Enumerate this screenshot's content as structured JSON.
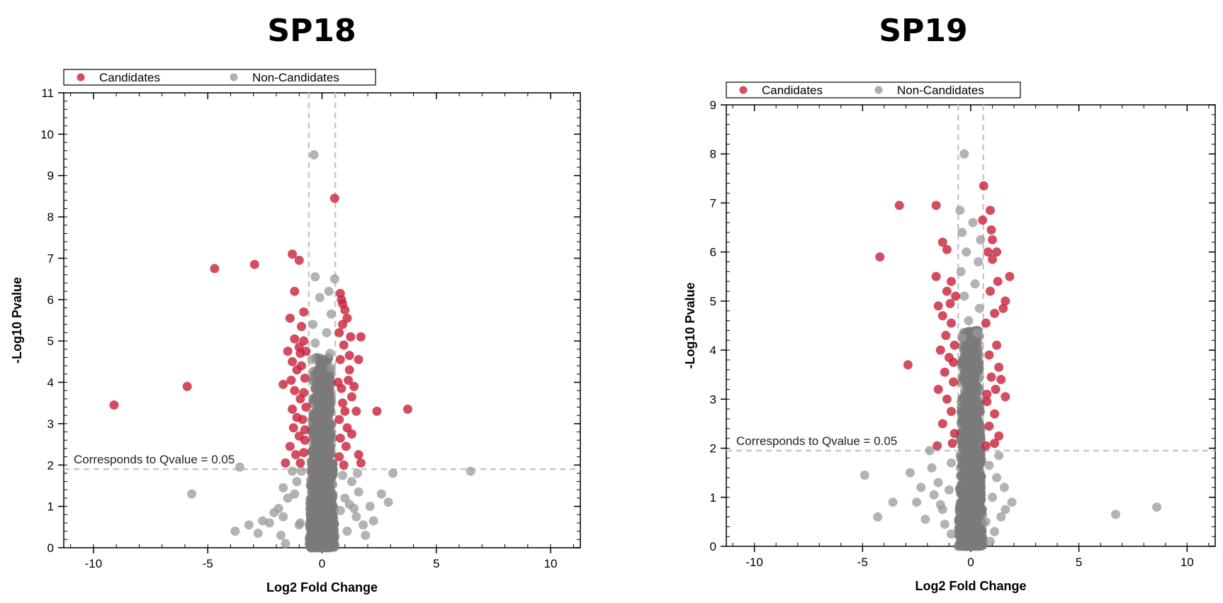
{
  "colors": {
    "candidate": "#c8203a",
    "non_candidate": "#9a9a9a",
    "dense_non_candidate": "#7a7a7a",
    "threshold_line": "#c8c8c8",
    "axis": "#000000"
  },
  "chart_data": [
    {
      "type": "scatter",
      "title": "SP18",
      "xlabel": "Log2 Fold Change",
      "ylabel": "-Log10 Pvalue",
      "xlim": [
        -11.3,
        11.3
      ],
      "ylim": [
        0,
        11
      ],
      "xticks": [
        -10,
        -5,
        0,
        5,
        10
      ],
      "yticks": [
        0,
        1,
        2,
        3,
        4,
        5,
        6,
        7,
        8,
        9,
        10,
        11
      ],
      "grid": false,
      "legend": {
        "position": "top-left",
        "entries": [
          "Candidates",
          "Non-Candidates"
        ]
      },
      "threshold": {
        "y": 1.9,
        "x": [
          -0.58,
          0.58
        ],
        "label": "Corresponds to Qvalue = 0.05"
      },
      "series": [
        {
          "name": "Candidates",
          "points": [
            [
              0.55,
              8.45
            ],
            [
              -1.3,
              7.1
            ],
            [
              -1.0,
              6.95
            ],
            [
              -2.95,
              6.85
            ],
            [
              -4.7,
              6.75
            ],
            [
              -9.1,
              3.45
            ],
            [
              -5.9,
              3.9
            ],
            [
              2.4,
              3.3
            ],
            [
              3.75,
              3.35
            ],
            [
              1.5,
              3.3
            ],
            [
              1.7,
              2.05
            ],
            [
              1.6,
              2.25
            ],
            [
              -1.7,
              3.95
            ],
            [
              1.6,
              4.55
            ],
            [
              1.7,
              5.1
            ],
            [
              -1.5,
              4.75
            ],
            [
              1.2,
              4.65
            ],
            [
              -1.2,
              6.2
            ],
            [
              -0.8,
              5.7
            ],
            [
              0.9,
              5.9
            ],
            [
              1.0,
              5.75
            ],
            [
              0.8,
              6.15
            ],
            [
              -1.4,
              5.55
            ],
            [
              1.25,
              5.1
            ],
            [
              -0.9,
              5.35
            ],
            [
              -1.2,
              5.05
            ],
            [
              -1.0,
              4.85
            ],
            [
              -1.3,
              4.5
            ],
            [
              -1.1,
              4.3
            ],
            [
              -1.35,
              4.05
            ],
            [
              -1.2,
              3.8
            ],
            [
              -0.95,
              3.6
            ],
            [
              -1.3,
              3.35
            ],
            [
              -1.1,
              3.15
            ],
            [
              -1.25,
              2.9
            ],
            [
              -1.0,
              2.7
            ],
            [
              -1.4,
              2.45
            ],
            [
              -1.15,
              2.25
            ],
            [
              -0.95,
              2.05
            ],
            [
              -0.8,
              2.3
            ],
            [
              -0.75,
              2.6
            ],
            [
              -0.75,
              2.85
            ],
            [
              -0.85,
              3.1
            ],
            [
              -0.7,
              3.4
            ],
            [
              -0.8,
              3.75
            ],
            [
              -0.75,
              4.1
            ],
            [
              -0.9,
              4.4
            ],
            [
              -0.7,
              4.75
            ],
            [
              -0.8,
              5.0
            ],
            [
              0.9,
              5.4
            ],
            [
              1.1,
              5.55
            ],
            [
              0.75,
              5.2
            ],
            [
              1.2,
              4.3
            ],
            [
              0.95,
              4.9
            ],
            [
              0.8,
              4.55
            ],
            [
              1.15,
              4.05
            ],
            [
              0.85,
              3.85
            ],
            [
              1.3,
              3.65
            ],
            [
              0.9,
              3.5
            ],
            [
              1.0,
              3.3
            ],
            [
              0.75,
              3.1
            ],
            [
              1.1,
              2.9
            ],
            [
              0.8,
              2.65
            ],
            [
              1.05,
              2.45
            ],
            [
              0.75,
              2.2
            ],
            [
              0.95,
              2.0
            ],
            [
              1.3,
              2.75
            ],
            [
              0.7,
              4.0
            ],
            [
              1.4,
              3.9
            ],
            [
              0.85,
              6.0
            ],
            [
              -1.6,
              2.05
            ],
            [
              -0.95,
              4.7
            ]
          ]
        },
        {
          "name": "Non-Candidates",
          "points": [
            [
              -0.35,
              9.5
            ],
            [
              -0.3,
              6.55
            ],
            [
              0.55,
              6.5
            ],
            [
              0.3,
              6.2
            ],
            [
              -0.1,
              6.05
            ],
            [
              0.4,
              5.65
            ],
            [
              -0.4,
              5.4
            ],
            [
              0.2,
              5.2
            ],
            [
              -0.3,
              4.95
            ],
            [
              0.35,
              4.7
            ],
            [
              -0.45,
              4.55
            ],
            [
              0.4,
              4.35
            ],
            [
              6.5,
              1.85
            ],
            [
              3.1,
              1.8
            ],
            [
              2.9,
              1.1
            ],
            [
              2.6,
              1.3
            ],
            [
              -3.6,
              1.95
            ],
            [
              -5.7,
              1.3
            ],
            [
              -3.8,
              0.4
            ],
            [
              -2.8,
              0.35
            ],
            [
              -2.3,
              0.6
            ],
            [
              -2.6,
              0.65
            ],
            [
              -1.7,
              0.75
            ],
            [
              -1.9,
              0.95
            ],
            [
              -1.5,
              1.2
            ],
            [
              -1.7,
              1.45
            ],
            [
              -1.1,
              1.6
            ],
            [
              -1.3,
              1.85
            ],
            [
              1.8,
              0.55
            ],
            [
              1.5,
              0.75
            ],
            [
              1.2,
              1.05
            ],
            [
              1.6,
              1.35
            ],
            [
              1.3,
              1.6
            ],
            [
              1.55,
              1.8
            ],
            [
              2.25,
              0.65
            ],
            [
              1.9,
              0.3
            ],
            [
              1.1,
              0.4
            ],
            [
              -1.6,
              0.1
            ],
            [
              -1.8,
              0.3
            ],
            [
              -1.0,
              0.55
            ],
            [
              1.4,
              0.95
            ],
            [
              -2.1,
              0.85
            ],
            [
              -0.9,
              1.85
            ],
            [
              0.9,
              1.75
            ],
            [
              -1.2,
              1.3
            ],
            [
              1.0,
              1.2
            ],
            [
              0.8,
              0.9
            ],
            [
              -0.95,
              0.6
            ],
            [
              -3.2,
              0.55
            ],
            [
              2.1,
              1.0
            ]
          ],
          "dense_band": {
            "x": [
              -0.58,
              0.58
            ],
            "y": [
              0,
              4.6
            ]
          }
        }
      ]
    },
    {
      "type": "scatter",
      "title": "SP19",
      "xlabel": "Log2 Fold Change",
      "ylabel": "-Log10 Pvalue",
      "xlim": [
        -11.3,
        11.3
      ],
      "ylim": [
        0,
        9
      ],
      "xticks": [
        -10,
        -5,
        0,
        5,
        10
      ],
      "yticks": [
        0,
        1,
        2,
        3,
        4,
        5,
        6,
        7,
        8,
        9
      ],
      "grid": false,
      "legend": {
        "position": "top-left",
        "entries": [
          "Candidates",
          "Non-Candidates"
        ]
      },
      "threshold": {
        "y": 1.95,
        "x": [
          -0.58,
          0.58
        ],
        "label": "Corresponds to Qvalue = 0.05"
      },
      "series": [
        {
          "name": "Candidates",
          "points": [
            [
              0.6,
              7.35
            ],
            [
              -3.3,
              6.95
            ],
            [
              -1.6,
              6.95
            ],
            [
              0.9,
              6.85
            ],
            [
              0.55,
              6.65
            ],
            [
              -4.2,
              5.9
            ],
            [
              -2.9,
              3.7
            ],
            [
              -1.3,
              6.2
            ],
            [
              0.95,
              6.45
            ],
            [
              1.0,
              6.25
            ],
            [
              1.2,
              6.0
            ],
            [
              0.8,
              6.0
            ],
            [
              -1.1,
              6.05
            ],
            [
              -1.6,
              5.5
            ],
            [
              1.25,
              5.4
            ],
            [
              1.8,
              5.5
            ],
            [
              1.6,
              5.0
            ],
            [
              1.5,
              4.85
            ],
            [
              -0.9,
              5.4
            ],
            [
              -1.1,
              5.2
            ],
            [
              -0.7,
              5.1
            ],
            [
              -1.5,
              4.9
            ],
            [
              -1.3,
              4.7
            ],
            [
              0.9,
              5.2
            ],
            [
              1.1,
              4.75
            ],
            [
              0.7,
              4.55
            ],
            [
              -0.9,
              4.55
            ],
            [
              -1.15,
              4.3
            ],
            [
              -0.75,
              4.1
            ],
            [
              -1.4,
              4.0
            ],
            [
              -1.0,
              3.85
            ],
            [
              -1.2,
              3.55
            ],
            [
              -0.8,
              3.35
            ],
            [
              -1.5,
              3.2
            ],
            [
              -1.1,
              3.0
            ],
            [
              -0.9,
              2.75
            ],
            [
              -1.3,
              2.5
            ],
            [
              -0.75,
              2.3
            ],
            [
              -1.55,
              2.05
            ],
            [
              1.2,
              4.1
            ],
            [
              0.85,
              3.9
            ],
            [
              1.3,
              3.65
            ],
            [
              0.95,
              3.45
            ],
            [
              1.15,
              3.2
            ],
            [
              1.6,
              3.05
            ],
            [
              0.75,
              2.95
            ],
            [
              1.1,
              2.7
            ],
            [
              0.85,
              2.45
            ],
            [
              1.3,
              2.25
            ],
            [
              0.7,
              2.05
            ],
            [
              1.0,
              5.85
            ],
            [
              0.75,
              3.1
            ],
            [
              1.4,
              3.4
            ],
            [
              -0.8,
              3.75
            ],
            [
              -0.85,
              2.1
            ],
            [
              1.1,
              2.1
            ],
            [
              -0.95,
              4.95
            ]
          ]
        },
        {
          "name": "Non-Candidates",
          "points": [
            [
              -0.3,
              8.0
            ],
            [
              -0.5,
              6.85
            ],
            [
              0.1,
              6.6
            ],
            [
              -0.4,
              6.4
            ],
            [
              0.45,
              6.25
            ],
            [
              -0.2,
              6.0
            ],
            [
              0.35,
              5.8
            ],
            [
              -0.45,
              5.6
            ],
            [
              0.2,
              5.35
            ],
            [
              -0.3,
              5.1
            ],
            [
              0.4,
              4.85
            ],
            [
              -0.1,
              4.6
            ],
            [
              0.3,
              4.35
            ],
            [
              -0.4,
              4.25
            ],
            [
              8.6,
              0.8
            ],
            [
              6.7,
              0.65
            ],
            [
              -4.9,
              1.45
            ],
            [
              -4.3,
              0.6
            ],
            [
              -3.6,
              0.9
            ],
            [
              -2.8,
              1.5
            ],
            [
              -2.3,
              1.2
            ],
            [
              -2.5,
              0.9
            ],
            [
              -1.9,
              1.95
            ],
            [
              -1.8,
              1.6
            ],
            [
              -1.5,
              1.3
            ],
            [
              -1.7,
              1.05
            ],
            [
              -1.3,
              0.75
            ],
            [
              -1.2,
              0.45
            ],
            [
              -0.9,
              0.25
            ],
            [
              1.3,
              1.85
            ],
            [
              1.2,
              1.4
            ],
            [
              1.55,
              1.2
            ],
            [
              1.9,
              0.9
            ],
            [
              1.4,
              0.6
            ],
            [
              1.1,
              0.3
            ],
            [
              0.9,
              0.1
            ],
            [
              -2.1,
              0.55
            ],
            [
              -1.0,
              1.15
            ],
            [
              1.0,
              1.0
            ],
            [
              -0.9,
              1.7
            ],
            [
              0.85,
              1.65
            ],
            [
              -1.4,
              0.85
            ],
            [
              1.6,
              0.75
            ],
            [
              0.7,
              0.5
            ]
          ],
          "dense_band": {
            "x": [
              -0.58,
              0.58
            ],
            "y": [
              0,
              4.4
            ]
          }
        }
      ]
    }
  ]
}
